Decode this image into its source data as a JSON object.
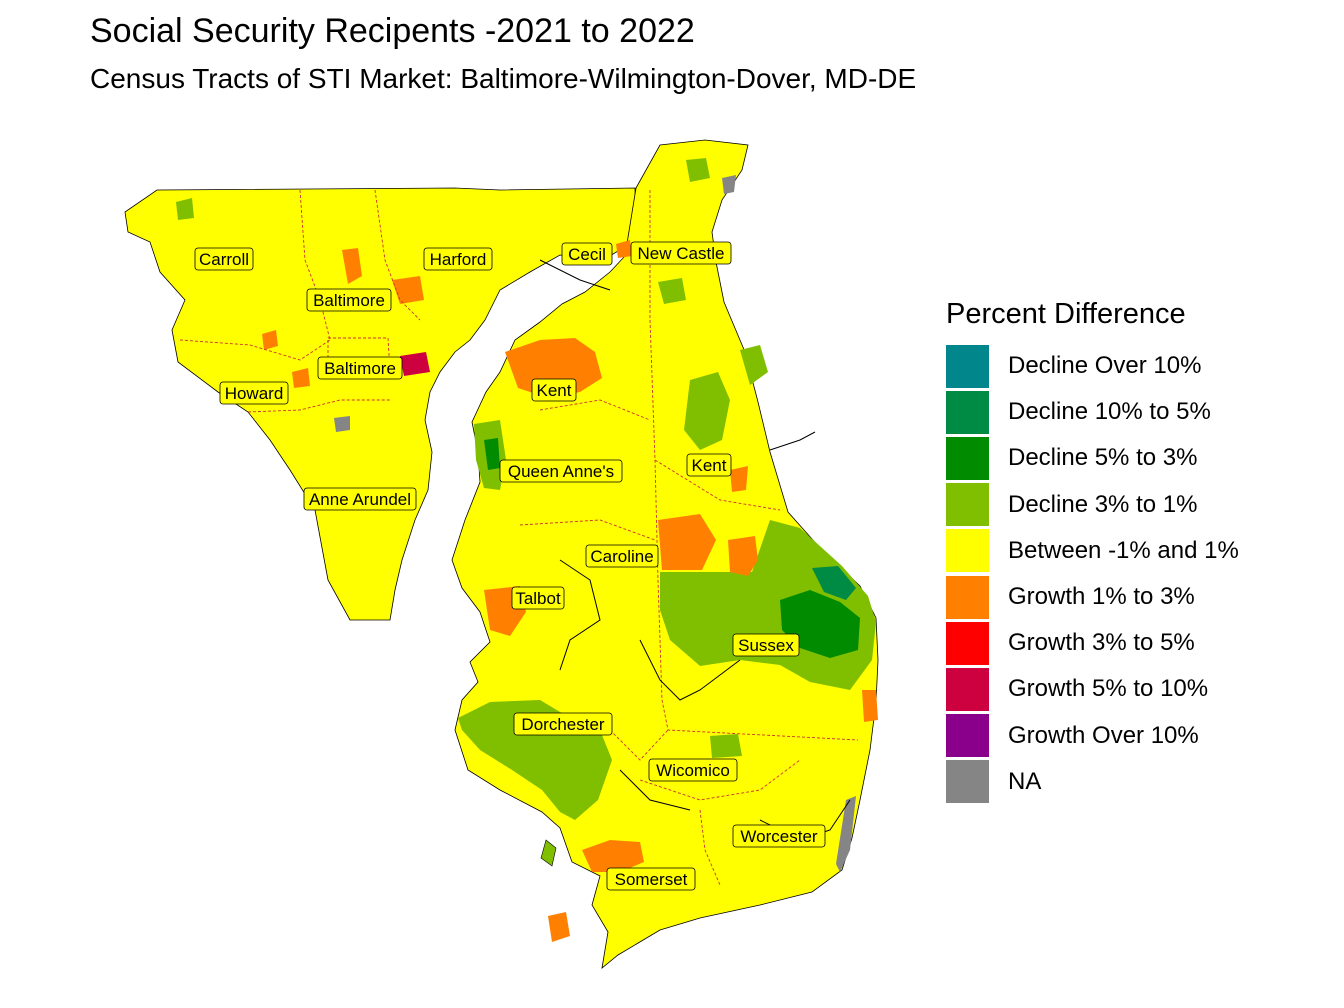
{
  "title": "Social Security Recipents -2021 to 2022",
  "subtitle": "Census Tracts of STI Market: Baltimore-Wilmington-Dover, MD-DE",
  "legend": {
    "title": "Percent Difference",
    "items": [
      {
        "label": "Decline Over 10%",
        "color": "#00868B"
      },
      {
        "label": "Decline 10% to 5%",
        "color": "#008B45"
      },
      {
        "label": "Decline 5% to 3%",
        "color": "#008B00"
      },
      {
        "label": "Decline 3% to 1%",
        "color": "#7FBF00"
      },
      {
        "label": "Between -1% and 1%",
        "color": "#FFFF00"
      },
      {
        "label": "Growth 1% to 3%",
        "color": "#FF8000"
      },
      {
        "label": "Growth 3% to 5%",
        "color": "#FF0000"
      },
      {
        "label": "Growth 5% to 10%",
        "color": "#CD0040"
      },
      {
        "label": "Growth Over 10%",
        "color": "#8B008B"
      },
      {
        "label": "NA",
        "color": "#858585"
      }
    ]
  },
  "counties": [
    {
      "name": "Carroll"
    },
    {
      "name": "Harford"
    },
    {
      "name": "Cecil"
    },
    {
      "name": "New Castle"
    },
    {
      "name": "Baltimore"
    },
    {
      "name": "Baltimore"
    },
    {
      "name": "Howard"
    },
    {
      "name": "Kent"
    },
    {
      "name": "Queen Anne's"
    },
    {
      "name": "Kent"
    },
    {
      "name": "Anne Arundel"
    },
    {
      "name": "Caroline"
    },
    {
      "name": "Talbot"
    },
    {
      "name": "Sussex"
    },
    {
      "name": "Dorchester"
    },
    {
      "name": "Wicomico"
    },
    {
      "name": "Worcester"
    },
    {
      "name": "Somerset"
    }
  ]
}
